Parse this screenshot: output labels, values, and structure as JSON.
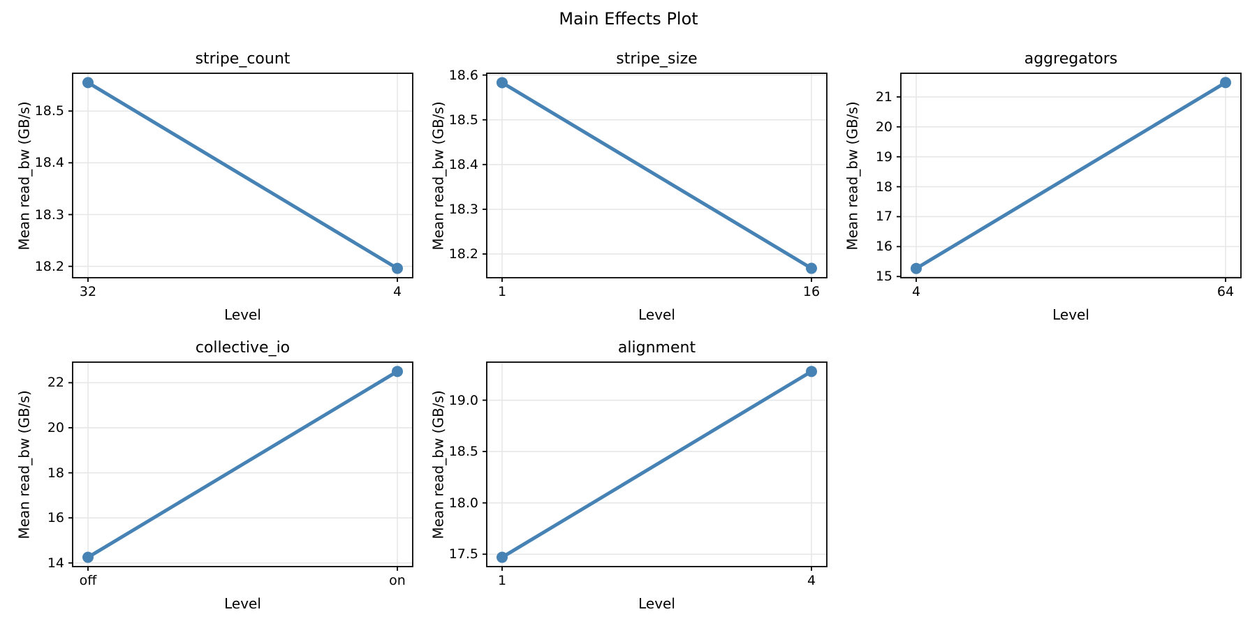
{
  "figure": {
    "title": "Main Effects Plot",
    "background": "#ffffff"
  },
  "style": {
    "line_color": "#4682B4",
    "marker_color": "#4682B4",
    "grid_color": "#e7e7e7",
    "spine_color": "#000000",
    "text_color": "#000000"
  },
  "chart_data": [
    {
      "type": "line",
      "title": "stripe_count",
      "categories": [
        "32",
        "4"
      ],
      "values": [
        18.555,
        18.196
      ],
      "yticks": [
        18.2,
        18.3,
        18.4,
        18.5
      ],
      "ytick_labels": [
        "18.2",
        "18.3",
        "18.4",
        "18.5"
      ],
      "ylim": [
        18.178,
        18.573
      ],
      "xlabel": "Level",
      "ylabel": "Mean read_bw (GB/s)",
      "grid": true
    },
    {
      "type": "line",
      "title": "stripe_size",
      "categories": [
        "1",
        "16"
      ],
      "values": [
        18.583,
        18.168
      ],
      "yticks": [
        18.2,
        18.3,
        18.4,
        18.5,
        18.6
      ],
      "ytick_labels": [
        "18.2",
        "18.3",
        "18.4",
        "18.5",
        "18.6"
      ],
      "ylim": [
        18.147,
        18.604
      ],
      "xlabel": "Level",
      "ylabel": "Mean read_bw (GB/s)",
      "grid": true
    },
    {
      "type": "line",
      "title": "aggregators",
      "categories": [
        "4",
        "64"
      ],
      "values": [
        15.27,
        21.48
      ],
      "yticks": [
        15,
        16,
        17,
        18,
        19,
        20,
        21
      ],
      "ytick_labels": [
        "15",
        "16",
        "17",
        "18",
        "19",
        "20",
        "21"
      ],
      "ylim": [
        14.96,
        21.79
      ],
      "xlabel": "Level",
      "ylabel": "Mean read_bw (GB/s)",
      "grid": true
    },
    {
      "type": "line",
      "title": "collective_io",
      "categories": [
        "off",
        "on"
      ],
      "values": [
        14.25,
        22.5
      ],
      "yticks": [
        14,
        16,
        18,
        20,
        22
      ],
      "ytick_labels": [
        "14",
        "16",
        "18",
        "20",
        "22"
      ],
      "ylim": [
        13.8375,
        22.9125
      ],
      "xlabel": "Level",
      "ylabel": "Mean read_bw (GB/s)",
      "grid": true
    },
    {
      "type": "line",
      "title": "alignment",
      "categories": [
        "1",
        "4"
      ],
      "values": [
        17.47,
        19.28
      ],
      "yticks": [
        17.5,
        18.0,
        18.5,
        19.0
      ],
      "ytick_labels": [
        "17.5",
        "18.0",
        "18.5",
        "19.0"
      ],
      "ylim": [
        17.3795,
        19.3705
      ],
      "xlabel": "Level",
      "ylabel": "Mean read_bw (GB/s)",
      "grid": true
    }
  ]
}
